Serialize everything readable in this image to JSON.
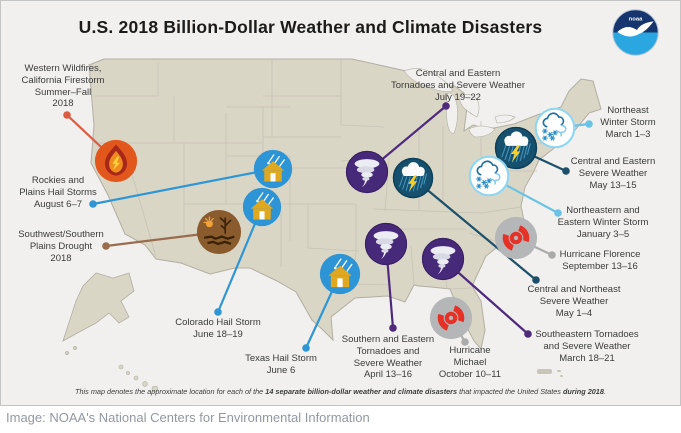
{
  "title": "U.S. 2018 Billion-Dollar Weather and Climate Disasters",
  "logo": {
    "name": "NOAA",
    "text": "noaa"
  },
  "caption": {
    "part1": "This map denotes the approximate location for each of the ",
    "bold1": "14 separate billion-dollar weather and climate disasters",
    "part2": " that impacted the United States ",
    "bold2": "during 2018",
    "part3": "."
  },
  "credit": "Image: NOAA's National Centers for Environmental Information",
  "colors": {
    "background": "#f1f0ee",
    "land": "#dad6c6",
    "state_border": "#c6c2b4",
    "hail_blue": "#2f96d6",
    "tornado_purple": "#4f2a7c",
    "severe_navy": "#1c4f69",
    "winter_lightblue": "#6ac2e6",
    "hurricane_gray": "#ababab",
    "wildfire_red": "#dd5b40",
    "drought_brown": "#9a6b4c",
    "hurricane_symbol_red": "#e53126"
  },
  "disasters": [
    {
      "id": "western-wildfires",
      "type": "fire",
      "color": "#dd5b40",
      "lines": [
        "Western Wildfires,",
        "California Firestorm",
        "Summer–Fall",
        "2018"
      ],
      "label": [
        62,
        62
      ],
      "dot": [
        66,
        114
      ],
      "icon": [
        115,
        160
      ],
      "r": 22
    },
    {
      "id": "rockies-hail",
      "type": "hail",
      "color": "#2f96d6",
      "lines": [
        "Rockies and",
        "Plains Hail Storms",
        "August 6–7"
      ],
      "label": [
        57,
        174
      ],
      "dot": [
        92,
        203
      ],
      "icon": [
        272,
        168
      ],
      "r": 20
    },
    {
      "id": "southwest-drought",
      "type": "drought",
      "color": "#9a6b4c",
      "lines": [
        "Southwest/Southern",
        "Plains Drought",
        "2018"
      ],
      "label": [
        60,
        228
      ],
      "dot": [
        105,
        245
      ],
      "icon": [
        218,
        231
      ],
      "r": 23
    },
    {
      "id": "colorado-hail",
      "type": "hail",
      "color": "#2f96d6",
      "lines": [
        "Colorado Hail Storm",
        "June 18–19"
      ],
      "label": [
        217,
        316
      ],
      "dot": [
        217,
        311
      ],
      "icon": [
        261,
        206
      ],
      "r": 20
    },
    {
      "id": "texas-hail",
      "type": "hail",
      "color": "#2f96d6",
      "lines": [
        "Texas Hail Storm",
        "June 6"
      ],
      "label": [
        280,
        352
      ],
      "dot": [
        305,
        347
      ],
      "icon": [
        339,
        273
      ],
      "r": 21
    },
    {
      "id": "central-eastern-tornadoes",
      "type": "tornado",
      "color": "#4f2a7c",
      "lines": [
        "Central and Eastern",
        "Tornadoes and Severe Weather",
        "July 19–22"
      ],
      "label": [
        457,
        67
      ],
      "dot": [
        445,
        105
      ],
      "icon": [
        366,
        171
      ],
      "r": 22
    },
    {
      "id": "northeast-winter-storm",
      "type": "winter",
      "color": "#6ac2e6",
      "lines": [
        "Northeast",
        "Winter Storm",
        "March 1–3"
      ],
      "label": [
        627,
        104
      ],
      "dot": [
        588,
        123
      ],
      "icon": [
        554,
        127
      ],
      "r": 21
    },
    {
      "id": "central-eastern-severe",
      "type": "storm",
      "color": "#1c4f69",
      "lines": [
        "Central and Eastern",
        "Severe Weather",
        "May 13–15"
      ],
      "label": [
        612,
        155
      ],
      "dot": [
        565,
        170
      ],
      "icon": [
        515,
        147
      ],
      "r": 22
    },
    {
      "id": "northeastern-winter-storm",
      "type": "winter",
      "color": "#6ac2e6",
      "lines": [
        "Northeastern and",
        "Eastern Winter Storm",
        "January 3–5"
      ],
      "label": [
        602,
        204
      ],
      "dot": [
        557,
        212
      ],
      "icon": [
        488,
        175
      ],
      "r": 21
    },
    {
      "id": "hurricane-florence",
      "type": "hurricane",
      "color": "#ababab",
      "lines": [
        "Hurricane Florence",
        "September 13–16"
      ],
      "label": [
        599,
        248
      ],
      "dot": [
        551,
        254
      ],
      "icon": [
        515,
        237
      ],
      "r": 22
    },
    {
      "id": "central-northeast-severe",
      "type": "storm",
      "color": "#1c4f69",
      "lines": [
        "Central and Northeast",
        "Severe Weather",
        "May 1–4"
      ],
      "label": [
        573,
        283
      ],
      "dot": [
        535,
        279
      ],
      "icon": [
        412,
        177
      ],
      "r": 21
    },
    {
      "id": "southeastern-tornadoes",
      "type": "tornado",
      "color": "#4f2a7c",
      "lines": [
        "Southeastern Tornadoes",
        "and Severe Weather",
        "March 18–21"
      ],
      "label": [
        586,
        328
      ],
      "dot": [
        527,
        333
      ],
      "icon": [
        442,
        258
      ],
      "r": 22
    },
    {
      "id": "southern-eastern-tornadoes",
      "type": "tornado",
      "color": "#4f2a7c",
      "lines": [
        "Southern and Eastern",
        "Tornadoes and",
        "Severe Weather",
        "April 13–16"
      ],
      "label": [
        387,
        333
      ],
      "dot": [
        392,
        327
      ],
      "icon": [
        385,
        243
      ],
      "r": 22
    },
    {
      "id": "hurricane-michael",
      "type": "hurricane",
      "color": "#ababab",
      "lines": [
        "Hurricane",
        "Michael",
        "October 10–11"
      ],
      "label": [
        469,
        344
      ],
      "dot": [
        464,
        341
      ],
      "icon": [
        450,
        317
      ],
      "r": 22
    }
  ]
}
